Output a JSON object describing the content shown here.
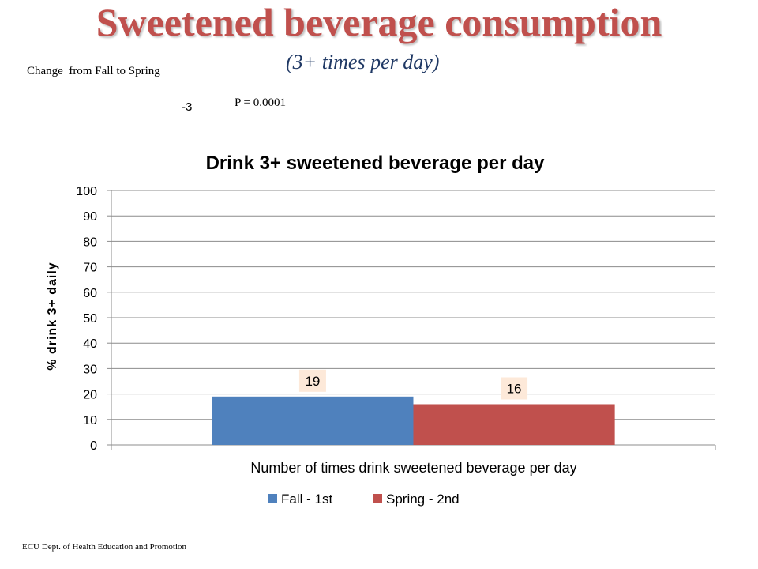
{
  "slide": {
    "title": "Sweetened beverage consumption",
    "subtitle": "(3+ times per day)",
    "change_label": "Change  from Fall to Spring",
    "change_value": "-3",
    "p_value": "P = 0.0001",
    "footer": "ECU Dept. of Health Education and Promotion"
  },
  "colors": {
    "title": "#c0504d",
    "subtitle": "#1f3864",
    "fall": "#4f81bd",
    "spring": "#c0504d",
    "data_label_bg": "#fde9d9"
  },
  "chart_data": {
    "type": "bar",
    "title": "Drink  3+ sweetened beverage per day",
    "xlabel": "Number of times drink sweetened beverage per day",
    "ylabel": "% drink 3+ daily",
    "ylim": [
      0,
      100
    ],
    "yticks": [
      "0",
      "10",
      "20",
      "30",
      "40",
      "50",
      "60",
      "70",
      "80",
      "90",
      "100"
    ],
    "grid": true,
    "legend_position": "bottom",
    "series": [
      {
        "name": "Fall - 1st",
        "values": [
          19
        ],
        "color": "#4f81bd",
        "data_label": "19"
      },
      {
        "name": "Spring - 2nd",
        "values": [
          16
        ],
        "color": "#c0504d",
        "data_label": "16"
      }
    ]
  }
}
